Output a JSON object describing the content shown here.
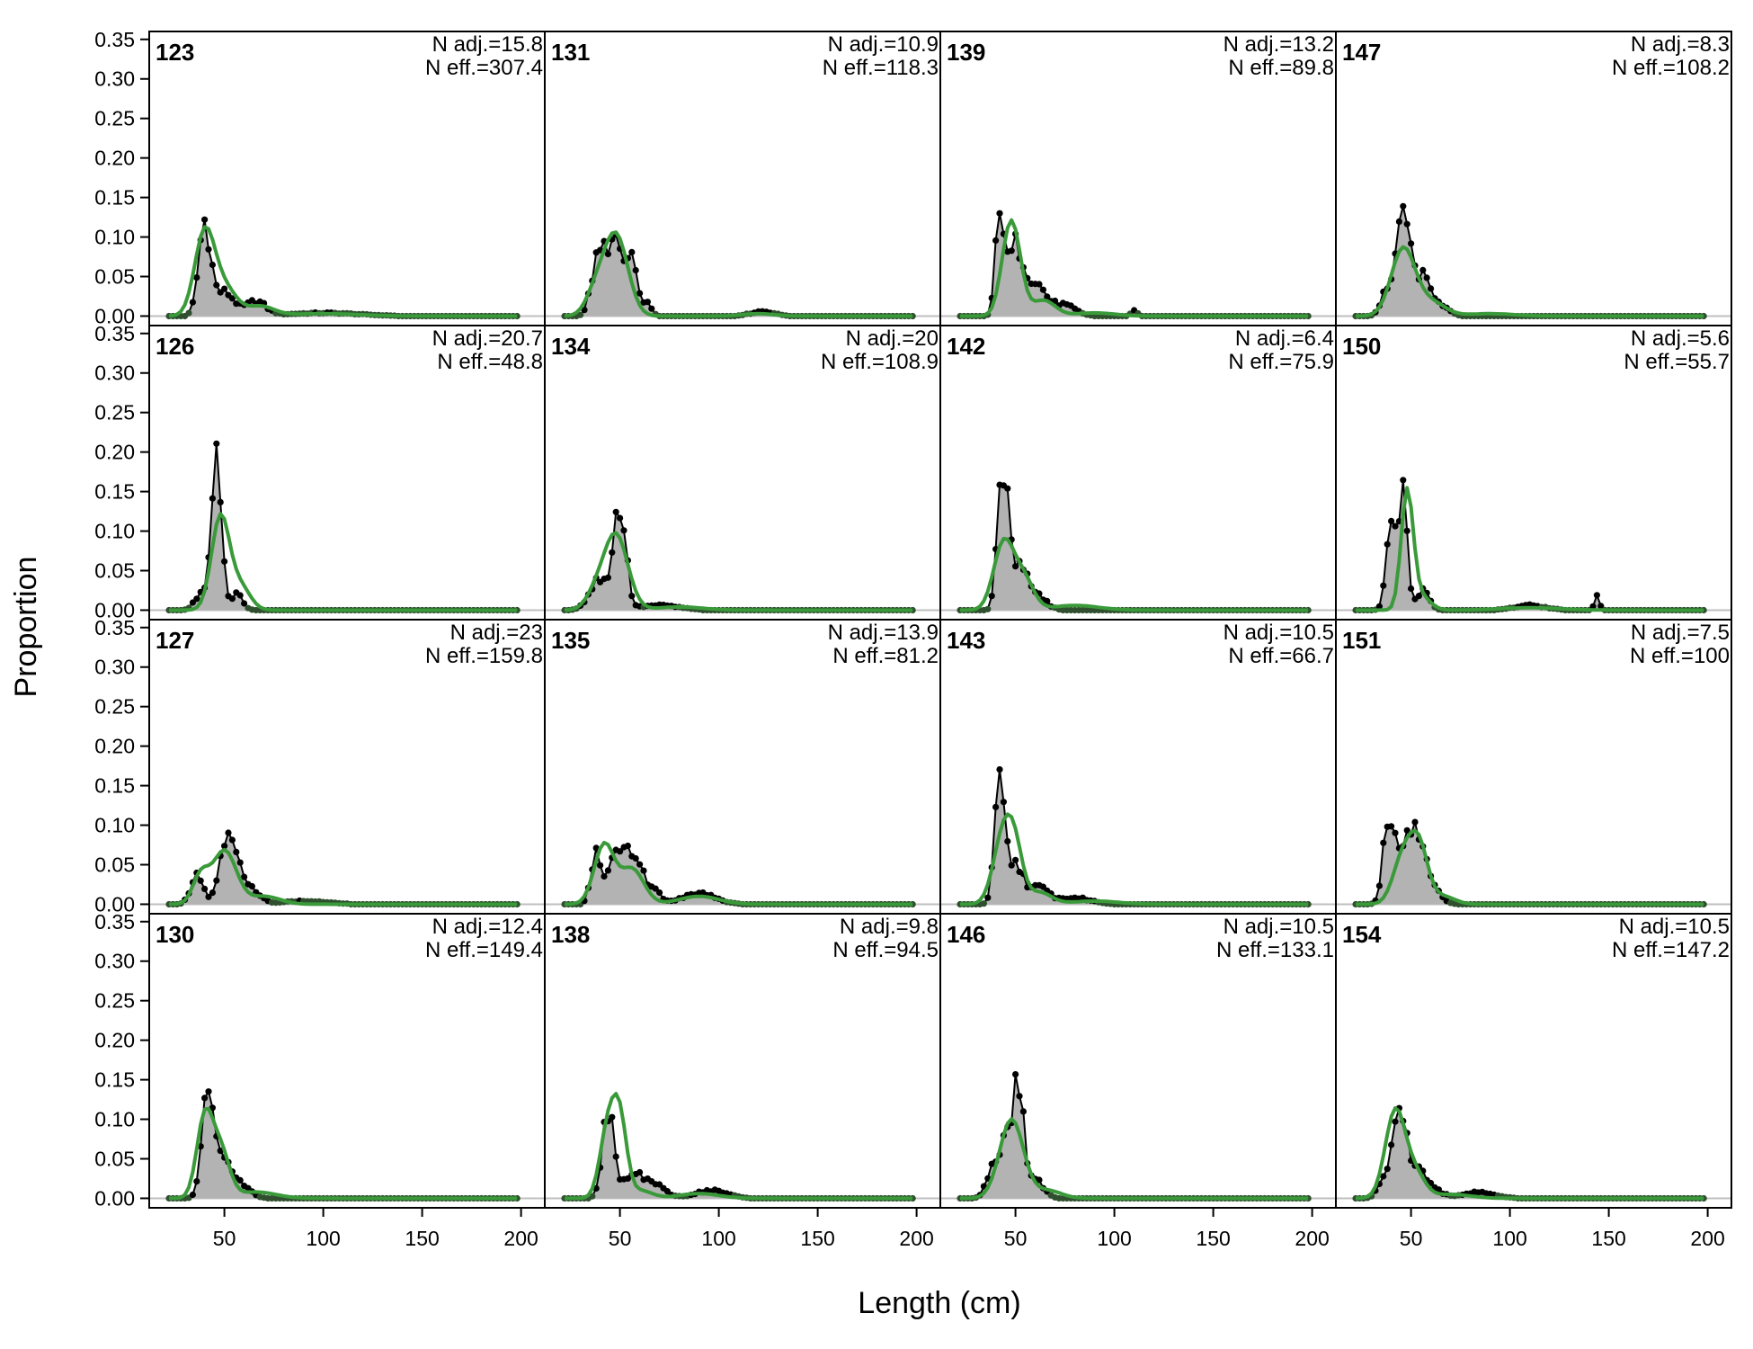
{
  "chart_data": {
    "type": "area",
    "xlabel": "Length (cm)",
    "ylabel": "Proportion",
    "xlim": [
      12,
      212
    ],
    "ylim": [
      -0.012,
      0.36
    ],
    "x_ticks": [
      50,
      100,
      150,
      200
    ],
    "y_ticks": [
      0.0,
      0.05,
      0.1,
      0.15,
      0.2,
      0.25,
      0.3,
      0.35
    ],
    "y_tick_labels": [
      "0.00",
      "0.05",
      "0.10",
      "0.15",
      "0.20",
      "0.25",
      "0.30",
      "0.35"
    ],
    "x_tick_labels": [
      "50",
      "100",
      "150",
      "200"
    ],
    "bins": {
      "start": 22,
      "end": 198,
      "step": 2
    },
    "colors": {
      "observed_fill": "#b3b3b3",
      "observed_line": "#000000",
      "expected_line": "#3a9a3a",
      "zero_line": "#bfbfbf"
    },
    "series_roles": [
      "observed",
      "expected"
    ],
    "panels": [
      {
        "label": "123",
        "n_adj": "N adj.=15.8",
        "n_eff": "N eff.=307.4",
        "observed": {
          "peaks": [
            [
              40,
              0.117,
              3
            ],
            [
              50,
              0.03,
              5
            ],
            [
              66,
              0.018,
              5
            ],
            [
              100,
              0.004,
              18
            ]
          ]
        },
        "expected": {
          "peaks": [
            [
              40,
              0.104,
              5
            ],
            [
              50,
              0.035,
              6
            ],
            [
              68,
              0.012,
              7
            ],
            [
              100,
              0.003,
              18
            ]
          ]
        }
      },
      {
        "label": "131",
        "n_adj": "N adj.=10.9",
        "n_eff": "N eff.=118.3",
        "observed": {
          "peaks": [
            [
              38,
              0.06,
              3
            ],
            [
              44,
              0.075,
              3
            ],
            [
              50,
              0.072,
              3
            ],
            [
              56,
              0.065,
              2
            ],
            [
              62,
              0.02,
              3
            ],
            [
              122,
              0.006,
              6
            ]
          ]
        },
        "expected": {
          "peaks": [
            [
              48,
              0.102,
              6
            ],
            [
              38,
              0.03,
              5
            ],
            [
              120,
              0.003,
              8
            ]
          ]
        }
      },
      {
        "label": "139",
        "n_adj": "N adj.=13.2",
        "n_eff": "N eff.=89.8",
        "observed": {
          "peaks": [
            [
              42,
              0.14,
              2
            ],
            [
              50,
              0.085,
              4
            ],
            [
              60,
              0.04,
              5
            ],
            [
              74,
              0.014,
              6
            ],
            [
              110,
              0.008,
              1.5
            ]
          ]
        },
        "expected": {
          "peaks": [
            [
              46,
              0.072,
              4
            ],
            [
              50,
              0.065,
              4
            ],
            [
              64,
              0.02,
              6
            ],
            [
              90,
              0.004,
              10
            ]
          ]
        }
      },
      {
        "label": "147",
        "n_adj": "N adj.=8.3",
        "n_eff": "N eff.=108.2",
        "observed": {
          "peaks": [
            [
              46,
              0.13,
              3
            ],
            [
              38,
              0.035,
              3
            ],
            [
              54,
              0.045,
              4
            ],
            [
              62,
              0.02,
              5
            ]
          ]
        },
        "expected": {
          "peaks": [
            [
              46,
              0.085,
              6
            ],
            [
              60,
              0.018,
              7
            ],
            [
              90,
              0.003,
              12
            ]
          ]
        }
      },
      {
        "label": "126",
        "n_adj": "N adj.=20.7",
        "n_eff": "N eff.=48.8",
        "observed": {
          "peaks": [
            [
              46,
              0.195,
              2.5
            ],
            [
              38,
              0.02,
              3
            ],
            [
              56,
              0.02,
              3
            ]
          ]
        },
        "expected": {
          "peaks": [
            [
              48,
              0.118,
              4.5
            ],
            [
              58,
              0.03,
              5
            ]
          ]
        }
      },
      {
        "label": "134",
        "n_adj": "N adj.=20",
        "n_eff": "N eff.=108.9",
        "observed": {
          "peaks": [
            [
              50,
              0.13,
              3
            ],
            [
              40,
              0.04,
              5
            ],
            [
              70,
              0.006,
              10
            ]
          ]
        },
        "expected": {
          "peaks": [
            [
              48,
              0.095,
              6
            ],
            [
              38,
              0.02,
              5
            ],
            [
              80,
              0.004,
              12
            ]
          ]
        }
      },
      {
        "label": "142",
        "n_adj": "N adj.=6.4",
        "n_eff": "N eff.=75.9",
        "observed": {
          "peaks": [
            [
              42,
              0.14,
              2
            ],
            [
              46,
              0.12,
              2
            ],
            [
              52,
              0.06,
              3
            ],
            [
              60,
              0.02,
              5
            ]
          ]
        },
        "expected": {
          "peaks": [
            [
              44,
              0.085,
              5
            ],
            [
              54,
              0.04,
              5
            ],
            [
              80,
              0.006,
              12
            ]
          ]
        }
      },
      {
        "label": "150",
        "n_adj": "N adj.=5.6",
        "n_eff": "N eff.=55.7",
        "observed": {
          "peaks": [
            [
              46,
              0.175,
              2
            ],
            [
              40,
              0.1,
              2.5
            ],
            [
              56,
              0.025,
              3
            ],
            [
              110,
              0.006,
              8
            ],
            [
              144,
              0.018,
              1.2
            ]
          ]
        },
        "expected": {
          "peaks": [
            [
              48,
              0.145,
              3
            ],
            [
              54,
              0.02,
              5
            ],
            [
              110,
              0.003,
              15
            ]
          ]
        }
      },
      {
        "label": "127",
        "n_adj": "N adj.=23",
        "n_eff": "N eff.=159.8",
        "observed": {
          "peaks": [
            [
              36,
              0.04,
              3
            ],
            [
              52,
              0.1,
              4
            ],
            [
              62,
              0.02,
              5
            ],
            [
              90,
              0.004,
              12
            ]
          ]
        },
        "expected": {
          "peaks": [
            [
              38,
              0.035,
              4
            ],
            [
              50,
              0.068,
              6
            ],
            [
              70,
              0.01,
              8
            ]
          ]
        }
      },
      {
        "label": "135",
        "n_adj": "N adj.=13.9",
        "n_eff": "N eff.=81.2",
        "observed": {
          "peaks": [
            [
              38,
              0.065,
              2.5
            ],
            [
              46,
              0.045,
              3
            ],
            [
              52,
              0.055,
              3
            ],
            [
              58,
              0.06,
              3
            ],
            [
              66,
              0.02,
              4
            ],
            [
              90,
              0.015,
              8
            ]
          ]
        },
        "expected": {
          "peaks": [
            [
              42,
              0.075,
              5
            ],
            [
              56,
              0.045,
              6
            ],
            [
              90,
              0.01,
              10
            ]
          ]
        }
      },
      {
        "label": "143",
        "n_adj": "N adj.=10.5",
        "n_eff": "N eff.=66.7",
        "observed": {
          "peaks": [
            [
              42,
              0.145,
              2.5
            ],
            [
              50,
              0.05,
              4
            ],
            [
              62,
              0.02,
              5
            ],
            [
              80,
              0.008,
              8
            ]
          ]
        },
        "expected": {
          "peaks": [
            [
              44,
              0.09,
              5
            ],
            [
              50,
              0.05,
              4
            ],
            [
              62,
              0.015,
              6
            ],
            [
              90,
              0.004,
              12
            ]
          ]
        }
      },
      {
        "label": "151",
        "n_adj": "N adj.=7.5",
        "n_eff": "N eff.=100",
        "observed": {
          "peaks": [
            [
              38,
              0.09,
              2.5
            ],
            [
              44,
              0.065,
              3
            ],
            [
              50,
              0.085,
              3
            ],
            [
              56,
              0.055,
              3
            ],
            [
              62,
              0.015,
              4
            ]
          ]
        },
        "expected": {
          "peaks": [
            [
              46,
              0.06,
              5
            ],
            [
              54,
              0.07,
              4.5
            ],
            [
              66,
              0.01,
              6
            ]
          ]
        }
      },
      {
        "label": "130",
        "n_adj": "N adj.=12.4",
        "n_eff": "N eff.=149.4",
        "observed": {
          "peaks": [
            [
              42,
              0.15,
              3
            ],
            [
              50,
              0.04,
              4
            ],
            [
              58,
              0.015,
              5
            ]
          ]
        },
        "expected": {
          "peaks": [
            [
              40,
              0.1,
              4
            ],
            [
              48,
              0.06,
              4.5
            ],
            [
              66,
              0.008,
              10
            ]
          ]
        }
      },
      {
        "label": "138",
        "n_adj": "N adj.=9.8",
        "n_eff": "N eff.=94.5",
        "observed": {
          "peaks": [
            [
              44,
              0.105,
              3
            ],
            [
              56,
              0.025,
              5
            ],
            [
              66,
              0.018,
              6
            ],
            [
              96,
              0.01,
              8
            ]
          ]
        },
        "expected": {
          "peaks": [
            [
              44,
              0.09,
              4
            ],
            [
              50,
              0.09,
              3.5
            ],
            [
              60,
              0.01,
              6
            ],
            [
              90,
              0.006,
              10
            ]
          ]
        }
      },
      {
        "label": "146",
        "n_adj": "N adj.=10.5",
        "n_eff": "N eff.=133.1",
        "observed": {
          "peaks": [
            [
              52,
              0.12,
              2.5
            ],
            [
              46,
              0.08,
              4
            ],
            [
              38,
              0.03,
              3
            ],
            [
              60,
              0.025,
              4
            ]
          ]
        },
        "expected": {
          "peaks": [
            [
              48,
              0.1,
              6
            ],
            [
              66,
              0.01,
              7
            ]
          ]
        }
      },
      {
        "label": "154",
        "n_adj": "N adj.=10.5",
        "n_eff": "N eff.=147.2",
        "observed": {
          "peaks": [
            [
              44,
              0.13,
              3
            ],
            [
              36,
              0.02,
              3
            ],
            [
              52,
              0.035,
              4
            ],
            [
              60,
              0.012,
              5
            ],
            [
              84,
              0.008,
              8
            ]
          ]
        },
        "expected": {
          "peaks": [
            [
              42,
              0.11,
              5
            ],
            [
              52,
              0.03,
              5
            ],
            [
              70,
              0.005,
              10
            ]
          ]
        }
      }
    ]
  }
}
